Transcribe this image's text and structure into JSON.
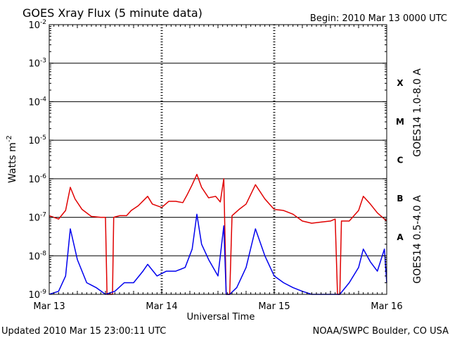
{
  "header": {
    "title": "GOES Xray Flux (5 minute data)",
    "begin": "Begin:  2010 Mar 13 0000 UTC"
  },
  "footer": {
    "updated": "Updated 2010 Mar 15 23:00:11 UTC",
    "credit": "NOAA/SWPC Boulder, CO USA"
  },
  "colors": {
    "long": "#e00000",
    "short": "#0000ee",
    "axis": "#000000"
  },
  "chart_data": {
    "type": "line",
    "title": "GOES Xray Flux (5 minute data)",
    "xlabel": "Universal Time",
    "ylabel": "Watts m",
    "ylabel_sup": "-2",
    "yscale": "log",
    "ylim": [
      1e-09,
      0.01
    ],
    "y_ticks": [
      {
        "value": 0.01,
        "base": "10",
        "exp": "-2"
      },
      {
        "value": 0.001,
        "base": "10",
        "exp": "-3"
      },
      {
        "value": 0.0001,
        "base": "10",
        "exp": "-4"
      },
      {
        "value": 1e-05,
        "base": "10",
        "exp": "-5"
      },
      {
        "value": 1e-06,
        "base": "10",
        "exp": "-6"
      },
      {
        "value": 1e-07,
        "base": "10",
        "exp": "-7"
      },
      {
        "value": 1e-08,
        "base": "10",
        "exp": "-8"
      },
      {
        "value": 1e-09,
        "base": "10",
        "exp": "-9"
      }
    ],
    "xlim": [
      "2010-03-13 00:00",
      "2010-03-16 00:00"
    ],
    "x_ticks": [
      "Mar 13",
      "Mar 14",
      "Mar 15",
      "Mar 16"
    ],
    "class_labels": [
      {
        "label": "X",
        "value": 0.0001
      },
      {
        "label": "M",
        "value": 1e-05
      },
      {
        "label": "C",
        "value": 1e-06
      },
      {
        "label": "B",
        "value": 1e-07
      },
      {
        "label": "A",
        "value": 1e-08
      }
    ],
    "threshold_lines": [
      0.001,
      0.0001,
      1e-05,
      1e-06,
      1e-07,
      1e-08
    ],
    "series": [
      {
        "name": "GOES14 1.0-8.0 A",
        "color": "#e00000",
        "points": [
          [
            "2010-03-13 00:00",
            1.1e-07
          ],
          [
            "2010-03-13 02:00",
            9e-08
          ],
          [
            "2010-03-13 03:30",
            1.5e-07
          ],
          [
            "2010-03-13 04:30",
            6e-07
          ],
          [
            "2010-03-13 05:30",
            3e-07
          ],
          [
            "2010-03-13 07:00",
            1.6e-07
          ],
          [
            "2010-03-13 09:00",
            1.05e-07
          ],
          [
            "2010-03-13 11:00",
            1e-07
          ],
          [
            "2010-03-13 12:00",
            1e-07
          ],
          [
            "2010-03-13 12:20",
            1e-09
          ],
          [
            "2010-03-13 13:30",
            1e-09
          ],
          [
            "2010-03-13 13:45",
            1e-07
          ],
          [
            "2010-03-13 15:00",
            1.1e-07
          ],
          [
            "2010-03-13 16:30",
            1.1e-07
          ],
          [
            "2010-03-13 17:30",
            1.5e-07
          ],
          [
            "2010-03-13 19:00",
            2e-07
          ],
          [
            "2010-03-13 21:00",
            3.5e-07
          ],
          [
            "2010-03-13 22:00",
            2.2e-07
          ],
          [
            "2010-03-14 00:00",
            1.8e-07
          ],
          [
            "2010-03-14 01:30",
            2.6e-07
          ],
          [
            "2010-03-14 03:00",
            2.6e-07
          ],
          [
            "2010-03-14 04:30",
            2.4e-07
          ],
          [
            "2010-03-14 05:30",
            4e-07
          ],
          [
            "2010-03-14 06:30",
            7e-07
          ],
          [
            "2010-03-14 07:30",
            1.3e-06
          ],
          [
            "2010-03-14 08:30",
            6e-07
          ],
          [
            "2010-03-14 10:00",
            3.2e-07
          ],
          [
            "2010-03-14 11:30",
            3.5e-07
          ],
          [
            "2010-03-14 12:30",
            2.5e-07
          ],
          [
            "2010-03-14 13:15",
            1e-06
          ],
          [
            "2010-03-14 13:45",
            1e-09
          ],
          [
            "2010-03-14 14:30",
            1e-09
          ],
          [
            "2010-03-14 15:00",
            1.1e-07
          ],
          [
            "2010-03-14 16:30",
            1.6e-07
          ],
          [
            "2010-03-14 18:00",
            2.2e-07
          ],
          [
            "2010-03-14 20:00",
            7e-07
          ],
          [
            "2010-03-14 22:00",
            3e-07
          ],
          [
            "2010-03-15 00:00",
            1.6e-07
          ],
          [
            "2010-03-15 02:00",
            1.5e-07
          ],
          [
            "2010-03-15 04:00",
            1.2e-07
          ],
          [
            "2010-03-15 06:00",
            8e-08
          ],
          [
            "2010-03-15 08:00",
            7e-08
          ],
          [
            "2010-03-15 10:00",
            7.5e-08
          ],
          [
            "2010-03-15 12:00",
            8e-08
          ],
          [
            "2010-03-15 13:00",
            9e-08
          ],
          [
            "2010-03-15 13:30",
            1e-09
          ],
          [
            "2010-03-15 14:00",
            1e-09
          ],
          [
            "2010-03-15 14:20",
            8e-08
          ],
          [
            "2010-03-15 16:00",
            8e-08
          ],
          [
            "2010-03-15 18:00",
            1.5e-07
          ],
          [
            "2010-03-15 19:00",
            3.5e-07
          ],
          [
            "2010-03-15 20:30",
            2.2e-07
          ],
          [
            "2010-03-15 22:00",
            1.3e-07
          ],
          [
            "2010-03-16 00:00",
            8e-08
          ]
        ]
      },
      {
        "name": "GOES14 0.5-4.0 A",
        "color": "#0000ee",
        "points": [
          [
            "2010-03-13 00:00",
            1e-09
          ],
          [
            "2010-03-13 02:00",
            1.2e-09
          ],
          [
            "2010-03-13 03:30",
            3e-09
          ],
          [
            "2010-03-13 04:30",
            5e-08
          ],
          [
            "2010-03-13 06:00",
            8e-09
          ],
          [
            "2010-03-13 08:00",
            2e-09
          ],
          [
            "2010-03-13 10:00",
            1.5e-09
          ],
          [
            "2010-03-13 12:00",
            1e-09
          ],
          [
            "2010-03-13 14:00",
            1.2e-09
          ],
          [
            "2010-03-13 16:00",
            2e-09
          ],
          [
            "2010-03-13 18:00",
            2e-09
          ],
          [
            "2010-03-13 20:00",
            4e-09
          ],
          [
            "2010-03-13 21:00",
            6e-09
          ],
          [
            "2010-03-13 23:00",
            3e-09
          ],
          [
            "2010-03-14 01:00",
            4e-09
          ],
          [
            "2010-03-14 03:00",
            4e-09
          ],
          [
            "2010-03-14 05:00",
            5e-09
          ],
          [
            "2010-03-14 06:30",
            1.5e-08
          ],
          [
            "2010-03-14 07:30",
            1.2e-07
          ],
          [
            "2010-03-14 08:30",
            2e-08
          ],
          [
            "2010-03-14 10:00",
            8e-09
          ],
          [
            "2010-03-14 12:00",
            3e-09
          ],
          [
            "2010-03-14 13:15",
            6e-08
          ],
          [
            "2010-03-14 13:45",
            1e-09
          ],
          [
            "2010-03-14 14:30",
            1e-09
          ],
          [
            "2010-03-14 16:00",
            1.5e-09
          ],
          [
            "2010-03-14 18:00",
            5e-09
          ],
          [
            "2010-03-14 20:00",
            5e-08
          ],
          [
            "2010-03-14 22:00",
            1e-08
          ],
          [
            "2010-03-15 00:00",
            3e-09
          ],
          [
            "2010-03-15 02:00",
            2e-09
          ],
          [
            "2010-03-15 04:00",
            1.5e-09
          ],
          [
            "2010-03-15 06:00",
            1.2e-09
          ],
          [
            "2010-03-15 08:00",
            1e-09
          ],
          [
            "2010-03-15 10:00",
            1e-09
          ],
          [
            "2010-03-15 12:00",
            1e-09
          ],
          [
            "2010-03-15 14:00",
            1e-09
          ],
          [
            "2010-03-15 16:00",
            2e-09
          ],
          [
            "2010-03-15 18:00",
            5e-09
          ],
          [
            "2010-03-15 19:00",
            1.5e-08
          ],
          [
            "2010-03-15 20:30",
            7e-09
          ],
          [
            "2010-03-15 22:00",
            4e-09
          ],
          [
            "2010-03-15 23:30",
            1.5e-08
          ],
          [
            "2010-03-16 00:00",
            2e-09
          ]
        ]
      }
    ]
  }
}
